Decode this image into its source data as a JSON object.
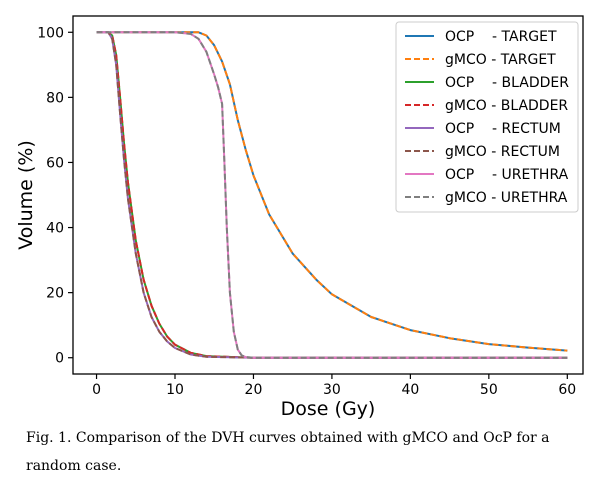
{
  "chart_data": {
    "type": "line",
    "title": "",
    "xlabel": "Dose (Gy)",
    "ylabel": "Volume (%)",
    "xlim": [
      -3,
      62
    ],
    "ylim": [
      -5,
      105
    ],
    "xticks": [
      0,
      10,
      20,
      30,
      40,
      50,
      60
    ],
    "yticks": [
      0,
      20,
      40,
      60,
      80,
      100
    ],
    "grid": false,
    "legend_position": "top-right",
    "series": [
      {
        "name": "OCP    - TARGET",
        "color": "#1f77b4",
        "dash": "solid",
        "x": [
          2,
          10,
          13,
          14,
          15,
          16,
          17,
          18,
          19,
          20,
          22,
          25,
          28,
          30,
          35,
          40,
          45,
          50,
          55,
          60
        ],
        "y": [
          100,
          100,
          100,
          99,
          96,
          91,
          84,
          73,
          64,
          56,
          44,
          32,
          24,
          19.5,
          12.5,
          8.5,
          6,
          4.2,
          3.1,
          2.2
        ]
      },
      {
        "name": "gMCO - TARGET",
        "color": "#ff7f0e",
        "dash": "dashed",
        "x": [
          2,
          10,
          13,
          14,
          15,
          16,
          17,
          18,
          19,
          20,
          22,
          25,
          28,
          30,
          35,
          40,
          45,
          50,
          55,
          60
        ],
        "y": [
          100,
          100,
          100,
          99,
          96,
          91,
          84,
          73,
          64,
          56,
          44,
          32,
          24,
          19.5,
          12.5,
          8.5,
          6,
          4.2,
          3.1,
          2.2
        ]
      },
      {
        "name": "OCP    - BLADDER",
        "color": "#2ca02c",
        "dash": "solid",
        "x": [
          0,
          1.5,
          2,
          2.5,
          3,
          3.5,
          4,
          5,
          6,
          7,
          8,
          9,
          10,
          12,
          14,
          20,
          30,
          45,
          60
        ],
        "y": [
          100,
          100,
          99,
          93,
          80,
          66,
          54,
          36,
          24,
          16,
          10.5,
          6.5,
          4,
          1.5,
          0.5,
          0,
          0,
          0,
          0
        ]
      },
      {
        "name": "gMCO - BLADDER",
        "color": "#d62728",
        "dash": "dashed",
        "x": [
          0,
          1.5,
          2,
          2.5,
          3,
          3.5,
          4,
          5,
          6,
          7,
          8,
          9,
          10,
          12,
          14,
          20,
          30,
          45,
          60
        ],
        "y": [
          100,
          100,
          99,
          93,
          80,
          66,
          54,
          36,
          24,
          16,
          10.5,
          6.5,
          4,
          1.5,
          0.5,
          0,
          0,
          0,
          0
        ]
      },
      {
        "name": "OCP    - RECTUM",
        "color": "#9467bd",
        "dash": "solid",
        "x": [
          0,
          1.5,
          2,
          2.5,
          3,
          3.5,
          4,
          5,
          6,
          7,
          8,
          9,
          10,
          12,
          14,
          20,
          30,
          45,
          60
        ],
        "y": [
          100,
          100,
          98,
          90,
          75,
          61,
          49,
          32,
          20,
          12.5,
          8,
          5,
          3,
          1,
          0.3,
          0,
          0,
          0,
          0
        ]
      },
      {
        "name": "gMCO - RECTUM",
        "color": "#8c564b",
        "dash": "dashed",
        "x": [
          0,
          1.5,
          2,
          2.5,
          3,
          3.5,
          4,
          5,
          6,
          7,
          8,
          9,
          10,
          12,
          14,
          20,
          30,
          45,
          60
        ],
        "y": [
          100,
          100,
          98,
          90,
          75,
          61,
          49,
          32,
          20,
          12.5,
          8,
          5,
          3,
          1,
          0.3,
          0,
          0,
          0,
          0
        ]
      },
      {
        "name": "OCP    - URETHRA",
        "color": "#e377c2",
        "dash": "solid",
        "x": [
          0,
          5,
          10,
          12,
          13,
          14,
          15,
          15.5,
          16,
          16.3,
          16.6,
          17,
          17.5,
          18,
          18.5,
          19,
          20,
          30,
          45,
          60
        ],
        "y": [
          100,
          100,
          100,
          99.5,
          98,
          94,
          87,
          83,
          78,
          60,
          40,
          20,
          8,
          2.5,
          0.7,
          0.2,
          0,
          0,
          0,
          0
        ]
      },
      {
        "name": "gMCO - URETHRA",
        "color": "#7f7f7f",
        "dash": "dashed",
        "x": [
          0,
          5,
          10,
          12,
          13,
          14,
          15,
          15.5,
          16,
          16.3,
          16.6,
          17,
          17.5,
          18,
          18.5,
          19,
          20,
          30,
          45,
          60
        ],
        "y": [
          100,
          100,
          100,
          99.5,
          98,
          94,
          87,
          83,
          78,
          60,
          40,
          20,
          8,
          2.5,
          0.7,
          0.2,
          0,
          0,
          0,
          0
        ]
      }
    ]
  },
  "caption": "Fig. 1. Comparison of the DVH curves obtained with gMCO and OcP for a random case."
}
